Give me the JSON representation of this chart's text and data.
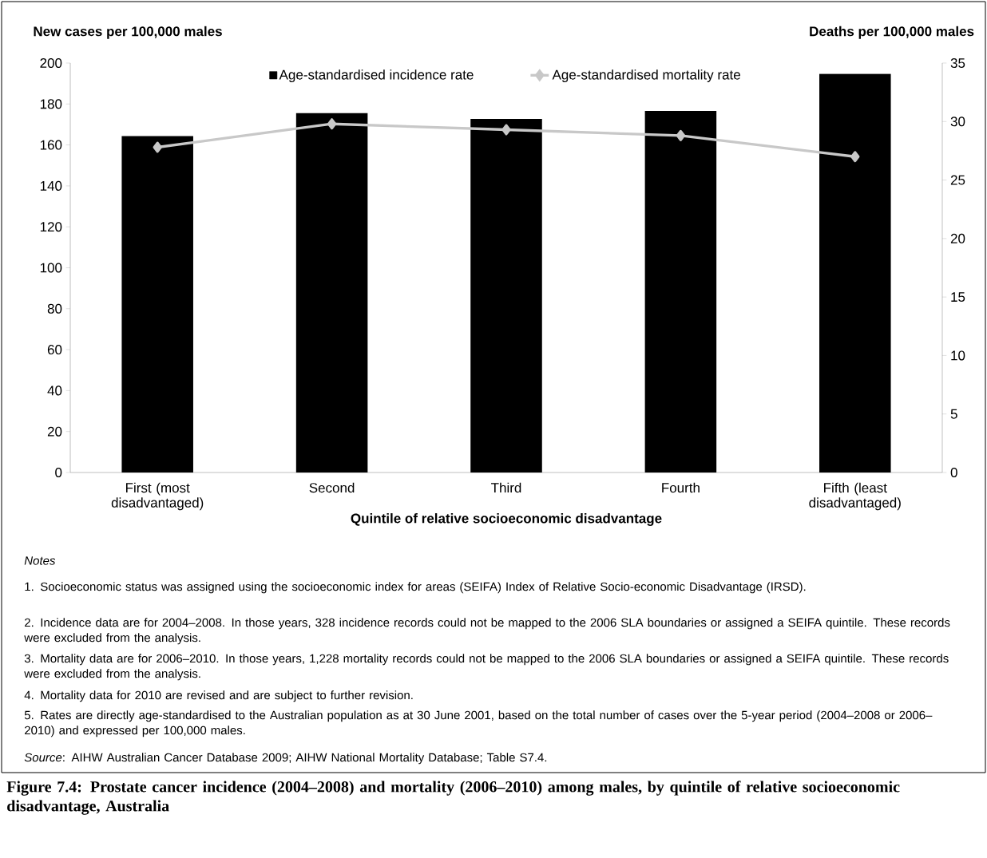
{
  "chart_data": {
    "type": "bar",
    "title": "Figure 7.4: Prostate cancer incidence (2004–2008) and mortality (2006–2010) among males, by quintile of relative socioeconomic disadvantage, Australia",
    "xlabel": "Quintile of relative socioeconomic disadvantage",
    "ylabel": "New cases per 100,000 males",
    "y2label": "Deaths per 100,000 males",
    "categories": [
      "First (most disadvantaged)",
      "Second",
      "Third",
      "Fourth",
      "Fifth (least disadvantaged)"
    ],
    "series": [
      {
        "name": "Age-standardised incidence rate",
        "color": "#000000",
        "values": [
          164.3,
          175.5,
          172.7,
          176.6,
          194.7
        ]
      },
      {
        "name": "Age-standardised mortality rate",
        "type": "line",
        "axis": "y2",
        "color": "#c8c8c8",
        "marker": "diamond",
        "values": [
          27.8,
          29.8,
          29.3,
          28.8,
          27.0
        ]
      }
    ],
    "ylim": [
      0,
      200
    ],
    "yticks": [
      0,
      20,
      40,
      60,
      80,
      100,
      120,
      140,
      160,
      180,
      200
    ],
    "y2lim": [
      0,
      35
    ],
    "y2ticks": [
      0,
      5,
      10,
      15,
      20,
      25,
      30,
      35
    ],
    "legend": "top",
    "annotations": [
      "*Notes*",
      "1. Socioeconomic status was assigned using the socioeconomic index for areas (SEIFA) Index of Relative Socio-economic Disadvantage (IRSD).",
      "2. Incidence data are for 2004–2008. In those years, 328 incidence records could not be mapped to the 2006 SLA boundaries or assigned a SEIFA quintile. These records were excluded from the analysis.",
      "3. Mortality data are for 2006–2010. In those years, 1,228 mortality records could not be mapped to the 2006 SLA boundaries or assigned a SEIFA quintile. These records were excluded from the analysis.",
      "4. Mortality data for 2010 are revised and are subject to further revision.",
      "5. Rates are directly age-standardised to the Australian population as at 30 June 2001, based on the total number of cases over the 5-year period (2004–2008 or 2006–2010) and expressed per 100,000 males.",
      "*Source*: AIHW Australian Cancer Database 2009; AIHW National Mortality Database; Table S7.4."
    ]
  }
}
